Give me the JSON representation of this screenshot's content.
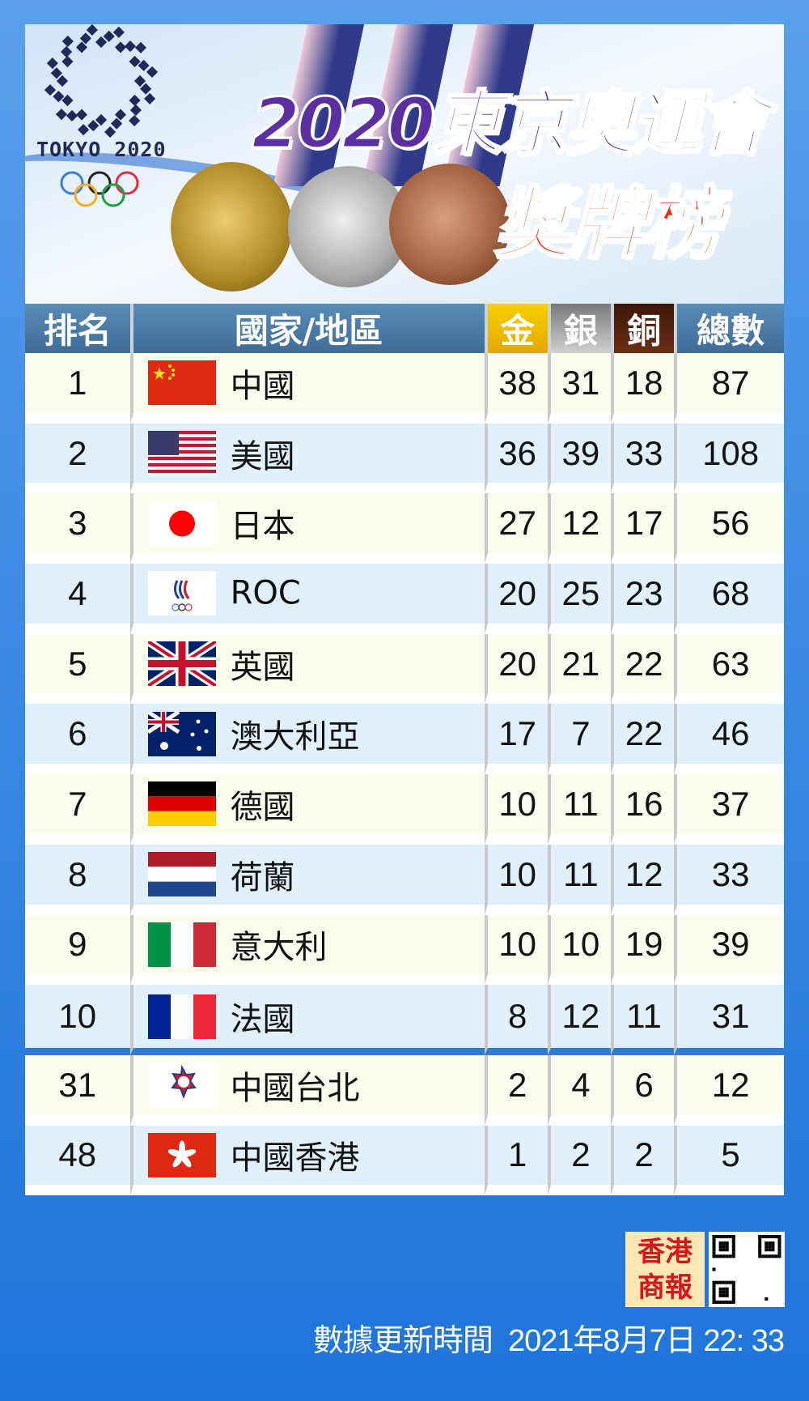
{
  "header": {
    "logo_text": "TOKYO 2020",
    "title_line1": "2020東京奧運會",
    "title_line2": "獎牌榜"
  },
  "colors": {
    "gold": "#f6c800",
    "silver": "#a0a0a0",
    "bronze": "#5a2410",
    "header": "#4a7aa8",
    "odd_row": "#fcfdef",
    "even_row": "#e0f1fd",
    "background": "#2e7bd8"
  },
  "table": {
    "columns": [
      "排名",
      "國家/地區",
      "金",
      "銀",
      "銅",
      "總數"
    ],
    "rows": [
      {
        "rank": "1",
        "country": "中國",
        "flag": "china-flag",
        "gold": "38",
        "silver": "31",
        "bronze": "18",
        "total": "87"
      },
      {
        "rank": "2",
        "country": "美國",
        "flag": "usa-flag",
        "gold": "36",
        "silver": "39",
        "bronze": "33",
        "total": "108"
      },
      {
        "rank": "3",
        "country": "日本",
        "flag": "japan-flag",
        "gold": "27",
        "silver": "12",
        "bronze": "17",
        "total": "56"
      },
      {
        "rank": "4",
        "country": "ROC",
        "flag": "roc-emblem",
        "gold": "20",
        "silver": "25",
        "bronze": "23",
        "total": "68"
      },
      {
        "rank": "5",
        "country": "英國",
        "flag": "uk-flag",
        "gold": "20",
        "silver": "21",
        "bronze": "22",
        "total": "63"
      },
      {
        "rank": "6",
        "country": "澳大利亞",
        "flag": "australia-flag",
        "gold": "17",
        "silver": "7",
        "bronze": "22",
        "total": "46"
      },
      {
        "rank": "7",
        "country": "德國",
        "flag": "germany-flag",
        "gold": "10",
        "silver": "11",
        "bronze": "16",
        "total": "37"
      },
      {
        "rank": "8",
        "country": "荷蘭",
        "flag": "netherlands-flag",
        "gold": "10",
        "silver": "11",
        "bronze": "12",
        "total": "33"
      },
      {
        "rank": "9",
        "country": "意大利",
        "flag": "italy-flag",
        "gold": "10",
        "silver": "10",
        "bronze": "19",
        "total": "39"
      },
      {
        "rank": "10",
        "country": "法國",
        "flag": "france-flag",
        "gold": "8",
        "silver": "12",
        "bronze": "11",
        "total": "31"
      },
      {
        "rank": "31",
        "country": "中國台北",
        "flag": "chinese-taipei-flag",
        "gold": "2",
        "silver": "4",
        "bronze": "6",
        "total": "12"
      },
      {
        "rank": "48",
        "country": "中國香港",
        "flag": "hong-kong-flag",
        "gold": "1",
        "silver": "2",
        "bronze": "2",
        "total": "5"
      }
    ]
  },
  "footer": {
    "publisher_logo": "香港商報",
    "updated_label": "數據更新時間",
    "updated_time": "2021年8月7日 22: 33"
  }
}
